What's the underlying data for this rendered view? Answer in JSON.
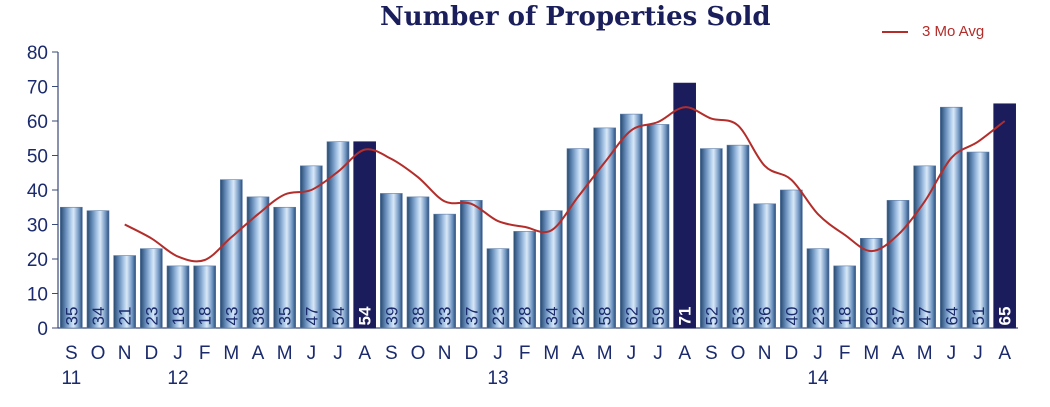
{
  "chart_data": {
    "type": "bar",
    "title": "Number of Properties Sold",
    "xlabel": "",
    "ylabel": "",
    "ylim": [
      0,
      80
    ],
    "yticks": [
      0,
      10,
      20,
      30,
      40,
      50,
      60,
      70,
      80
    ],
    "grid": false,
    "legend_position": "top-right",
    "categories": [
      "S",
      "O",
      "N",
      "D",
      "J",
      "F",
      "M",
      "A",
      "M",
      "J",
      "J",
      "A",
      "S",
      "O",
      "N",
      "D",
      "J",
      "F",
      "M",
      "A",
      "M",
      "J",
      "J",
      "A",
      "S",
      "O",
      "N",
      "D",
      "J",
      "F",
      "M",
      "A",
      "M",
      "J",
      "J",
      "A"
    ],
    "year_labels": [
      {
        "index": 0,
        "label": "11"
      },
      {
        "index": 4,
        "label": "12"
      },
      {
        "index": 16,
        "label": "13"
      },
      {
        "index": 28,
        "label": "14"
      }
    ],
    "series": [
      {
        "type": "bar",
        "values": [
          35,
          34,
          21,
          23,
          18,
          18,
          43,
          38,
          35,
          47,
          54,
          54,
          39,
          38,
          33,
          37,
          23,
          28,
          34,
          52,
          58,
          62,
          59,
          71,
          52,
          53,
          36,
          40,
          23,
          18,
          26,
          37,
          47,
          64,
          51,
          65
        ],
        "highlight_indices": [
          11,
          23,
          35
        ]
      },
      {
        "type": "line",
        "name": "3 Mo Avg",
        "values": [
          null,
          null,
          30,
          26,
          20.7,
          19.7,
          26.3,
          33,
          38.7,
          40,
          45.3,
          51.7,
          49,
          43.7,
          36.7,
          36,
          31,
          29.3,
          28.3,
          38,
          48,
          57.3,
          59.7,
          64,
          60.7,
          58.7,
          47,
          43,
          33,
          27,
          22.3,
          27,
          36.7,
          49.3,
          54,
          60
        ]
      }
    ],
    "colors": {
      "bar_gradient": [
        "#27486c",
        "#5f86b4",
        "#b0cceb",
        "#d9e8f7",
        "#6d93c0",
        "#2b4d77"
      ],
      "highlight_bar": "#1b1c5c",
      "line": "#b32d2a",
      "bar_label": "#1a2a6c",
      "highlight_label": "#ffffff",
      "axis_text": "#1a2a6c",
      "title": "#1a1f5c"
    }
  }
}
